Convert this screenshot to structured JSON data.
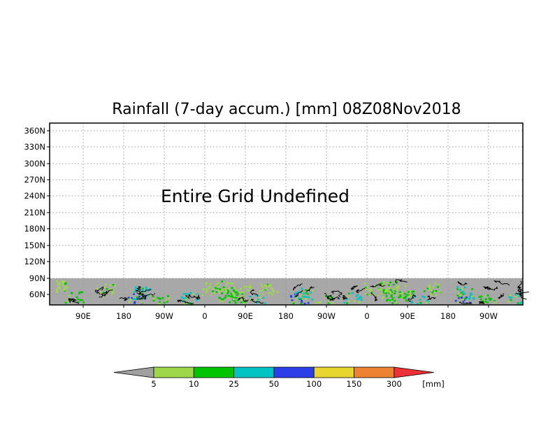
{
  "title": "Rainfall (7-day accum.) [mm] 08Z08Nov2018",
  "message": "Entire Grid Undefined",
  "y_ticks": [
    "360N",
    "330N",
    "300N",
    "270N",
    "240N",
    "210N",
    "180N",
    "150N",
    "120N",
    "90N",
    "60N"
  ],
  "x_ticks": [
    "90E",
    "180",
    "90W",
    "0",
    "90E",
    "180",
    "90W",
    "0",
    "90E",
    "180",
    "90W"
  ],
  "colorbar": {
    "unit_label": "[mm]",
    "labels": [
      "5",
      "10",
      "25",
      "50",
      "100",
      "150",
      "300"
    ],
    "colors": {
      "below": "#a0a0a0",
      "bins": [
        "#9ed84a",
        "#00c400",
        "#00c4c4",
        "#2c3ee8",
        "#e8d62e",
        "#ec8232"
      ],
      "above": "#ec3236"
    }
  },
  "map_colors": {
    "land_no_data": "#a8a8a8",
    "coast": "#000000",
    "rain_light": "#9ed84a",
    "rain_moderate": "#00c400",
    "rain_heavy": "#00c4c4",
    "rain_very_heavy": "#2c3ee8"
  }
}
